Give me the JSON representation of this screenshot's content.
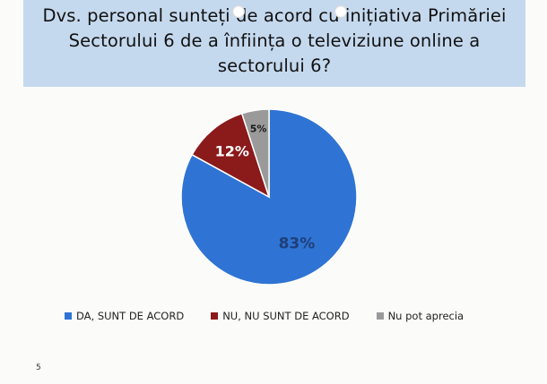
{
  "title": {
    "line1": "Dvs. personal sunteți de acord cu inițiativa Primăriei",
    "line2": "Sectorului 6 de a înființa o televiziune online a",
    "line3": "sectorului 6?"
  },
  "chart_data": {
    "type": "pie",
    "title": "Dvs. personal sunteți de acord cu inițiativa Primăriei Sectorului 6 de a înființa o televiziune online a sectorului 6?",
    "slices": [
      {
        "label": "DA, SUNT DE ACORD",
        "value": 83,
        "display": "83%",
        "color": "#2f74d4",
        "label_color": "#1f3f78"
      },
      {
        "label": "NU, NU SUNT DE ACORD",
        "value": 12,
        "display": "12%",
        "color": "#8b1a1a",
        "label_color": "#ffffff"
      },
      {
        "label": "Nu pot aprecia",
        "value": 5,
        "display": "5%",
        "color": "#9a9a9a",
        "label_color": "#1a1a1a"
      }
    ],
    "legend_position": "bottom"
  },
  "page_number": "5"
}
